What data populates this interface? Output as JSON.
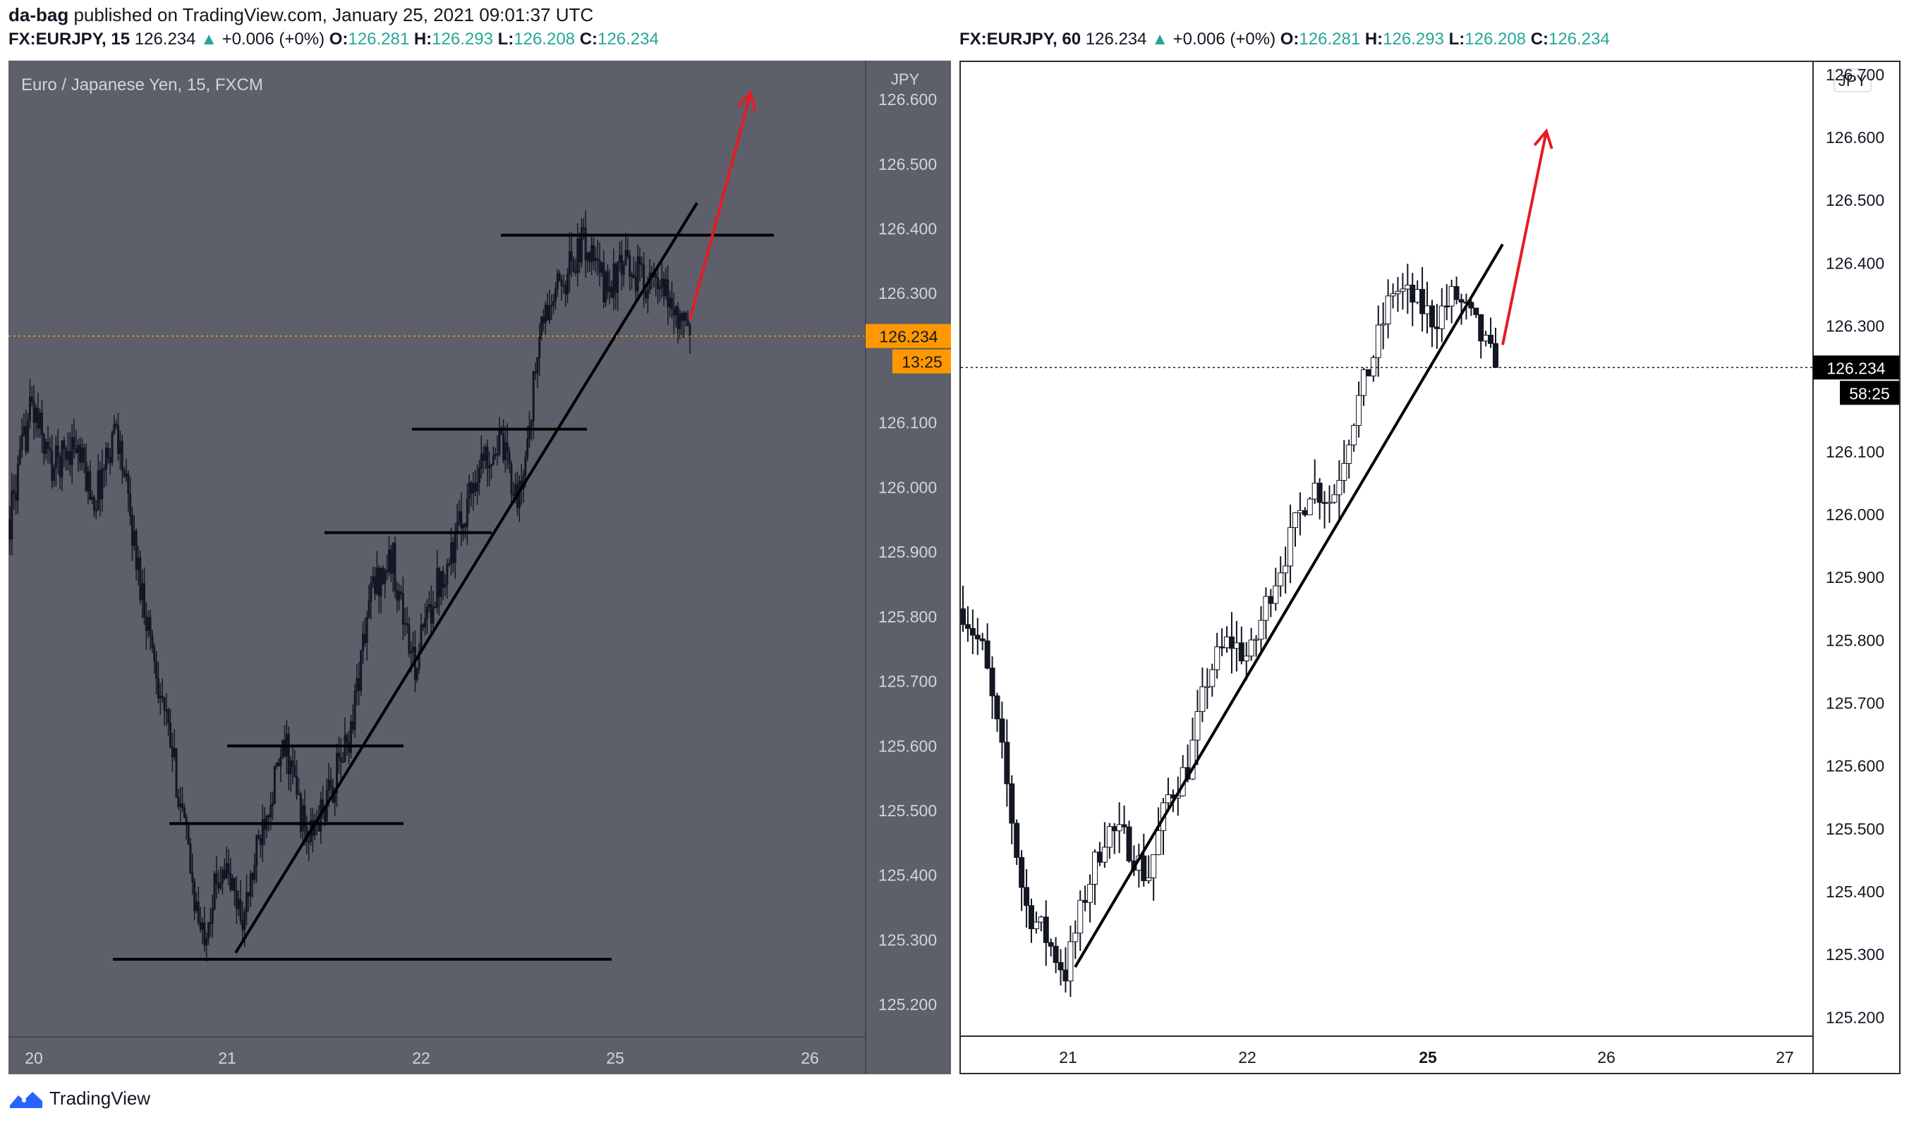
{
  "header": {
    "author": "da-bag",
    "published_text": "published on TradingView.com, January 25, 2021 09:01:37 UTC"
  },
  "left_symbol_line": {
    "symbol": "FX:EURJPY, 15",
    "last": "126.234",
    "change_arrow": "▲",
    "change": "+0.006 (+0%)",
    "o_label": "O:",
    "o": "126.281",
    "h_label": "H:",
    "h": "126.293",
    "l_label": "L:",
    "l": "126.208",
    "c_label": "C:",
    "c": "126.234"
  },
  "right_symbol_line": {
    "symbol": "FX:EURJPY, 60",
    "last": "126.234",
    "change_arrow": "▲",
    "change": "+0.006 (+0%)",
    "o_label": "O:",
    "o": "126.281",
    "h_label": "H:",
    "h": "126.293",
    "l_label": "L:",
    "l": "126.208",
    "c_label": "C:",
    "c": "126.234"
  },
  "footer": {
    "brand": "TradingView"
  },
  "colors": {
    "left_bg": "#5d606b",
    "right_bg": "#ffffff",
    "candle_left": "#131722",
    "arrow": "#e51c23",
    "price_tag_left": "#ff9800",
    "price_tag_right": "#000000",
    "teal": "#26a69a"
  },
  "chart_data": [
    {
      "type": "candlestick",
      "title": "Euro / Japanese Yen, 15, FXCM",
      "currency_label": "JPY",
      "ylim": [
        125.15,
        126.66
      ],
      "y_ticks": [
        "126.600",
        "126.500",
        "126.400",
        "126.300",
        "126.100",
        "126.000",
        "125.900",
        "125.800",
        "125.700",
        "125.600",
        "125.500",
        "125.400",
        "125.300",
        "125.200"
      ],
      "x_ticks": [
        "20",
        "21",
        "22",
        "25",
        "26"
      ],
      "last_price_label": "126.234",
      "countdown_label": "13:25",
      "last_price": 126.234,
      "trend_line": {
        "from": [
          "21",
          125.28
        ],
        "to": [
          "25",
          126.44
        ]
      },
      "horizontal_levels": [
        {
          "from_day": "20",
          "to_day": "25",
          "price": 125.27
        },
        {
          "from_day": "20",
          "to_day": "22",
          "price": 125.48
        },
        {
          "from_day": "21",
          "to_day": "22",
          "price": 125.6
        },
        {
          "from_day": "21",
          "to_day": "22",
          "price": 125.93
        },
        {
          "from_day": "22",
          "to_day": "22",
          "price": 126.09
        },
        {
          "from_day": "22",
          "to_day": "25",
          "price": 126.39
        }
      ],
      "projection_arrow": {
        "from_price": 126.26,
        "to_price": 126.61
      },
      "close_path": [
        [
          "20",
          125.95
        ],
        [
          "20",
          126.13
        ],
        [
          "20",
          126.03
        ],
        [
          "20",
          126.07
        ],
        [
          "20",
          125.98
        ],
        [
          "20",
          126.1
        ],
        [
          "20",
          125.88
        ],
        [
          "20",
          125.7
        ],
        [
          "20",
          125.52
        ],
        [
          "20",
          125.3
        ],
        [
          "21",
          125.42
        ],
        [
          "21",
          125.33
        ],
        [
          "21",
          125.5
        ],
        [
          "21",
          125.6
        ],
        [
          "21",
          125.45
        ],
        [
          "21",
          125.52
        ],
        [
          "21",
          125.62
        ],
        [
          "21",
          125.84
        ],
        [
          "21",
          125.89
        ],
        [
          "21",
          125.72
        ],
        [
          "21",
          125.84
        ],
        [
          "22",
          125.92
        ],
        [
          "22",
          126.03
        ],
        [
          "22",
          126.07
        ],
        [
          "22",
          125.98
        ],
        [
          "22",
          126.25
        ],
        [
          "22",
          126.32
        ],
        [
          "22",
          126.38
        ],
        [
          "22",
          126.31
        ],
        [
          "25",
          126.34
        ],
        [
          "25",
          126.32
        ],
        [
          "25",
          126.29
        ],
        [
          "25",
          126.234
        ]
      ]
    },
    {
      "type": "candlestick",
      "currency_label": "JPY",
      "ylim": [
        125.17,
        126.72
      ],
      "y_ticks": [
        "126.700",
        "126.600",
        "126.500",
        "126.400",
        "126.300",
        "126.100",
        "126.000",
        "125.900",
        "125.800",
        "125.700",
        "125.600",
        "125.500",
        "125.400",
        "125.300",
        "125.200"
      ],
      "x_ticks": [
        "21",
        "22",
        "25",
        "26",
        "27"
      ],
      "last_price_label": "126.234",
      "countdown_label": "58:25",
      "last_price": 126.234,
      "trend_line": {
        "from": [
          "21",
          125.28
        ],
        "to": [
          "25",
          126.43
        ]
      },
      "projection_arrow": {
        "from_price": 126.27,
        "to_price": 126.61
      },
      "close_path": [
        [
          "20",
          125.85
        ],
        [
          "20",
          125.78
        ],
        [
          "20",
          125.6
        ],
        [
          "20",
          125.38
        ],
        [
          "20",
          125.33
        ],
        [
          "21",
          125.27
        ],
        [
          "21",
          125.4
        ],
        [
          "21",
          125.5
        ],
        [
          "21",
          125.48
        ],
        [
          "21",
          125.42
        ],
        [
          "21",
          125.55
        ],
        [
          "21",
          125.6
        ],
        [
          "21",
          125.75
        ],
        [
          "21",
          125.8
        ],
        [
          "21",
          125.77
        ],
        [
          "22",
          125.88
        ],
        [
          "22",
          125.96
        ],
        [
          "22",
          126.05
        ],
        [
          "22",
          126.02
        ],
        [
          "22",
          126.15
        ],
        [
          "22",
          126.25
        ],
        [
          "22",
          126.36
        ],
        [
          "22",
          126.34
        ],
        [
          "25",
          126.31
        ],
        [
          "25",
          126.35
        ],
        [
          "25",
          126.3
        ],
        [
          "25",
          126.234
        ]
      ]
    }
  ]
}
